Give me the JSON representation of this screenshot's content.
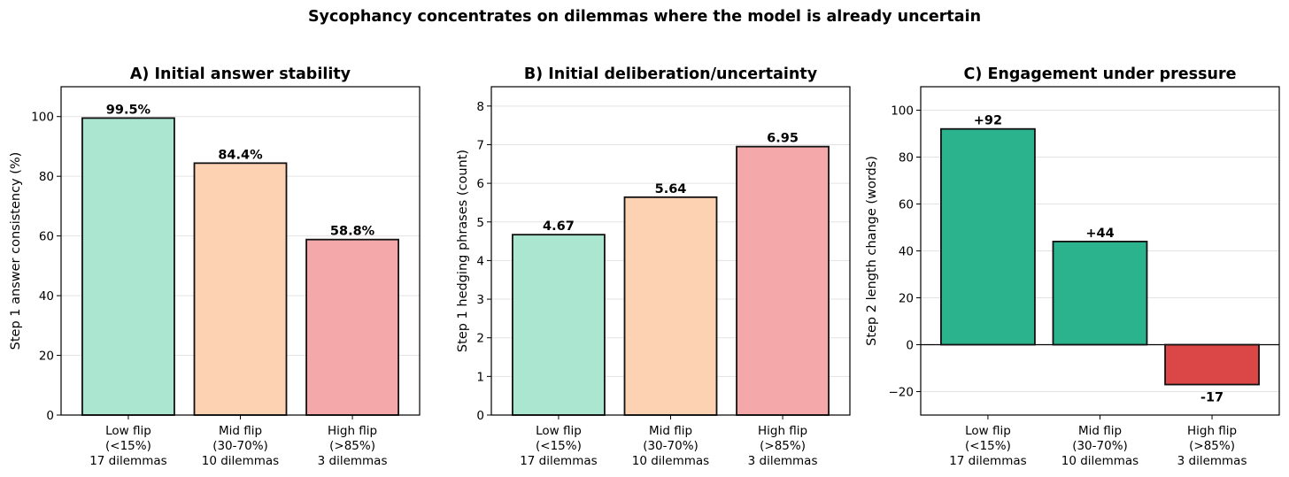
{
  "figure_title": "Sycophancy concentrates on dilemmas where the model is already uncertain",
  "colors": {
    "low_pastel": "#abe6d0",
    "mid_pastel": "#fdd2b3",
    "high_pastel": "#f4a8a9",
    "positive": "#2bb38e",
    "negative": "#db4646",
    "edge": "#111111",
    "grid": "#e3e3e3"
  },
  "chart_data": [
    {
      "type": "bar",
      "title": "A) Initial answer stability",
      "xlabel": "",
      "ylabel": "Step 1 answer consistency (%)",
      "categories": [
        [
          "Low flip",
          "(<15%)",
          "17 dilemmas"
        ],
        [
          "Mid flip",
          "(30-70%)",
          "10 dilemmas"
        ],
        [
          "High flip",
          "(>85%)",
          "3 dilemmas"
        ]
      ],
      "values": [
        99.5,
        84.4,
        58.8
      ],
      "value_labels": [
        "99.5%",
        "84.4%",
        "58.8%"
      ],
      "ylim": [
        0,
        110
      ],
      "yticks": [
        0,
        20,
        40,
        60,
        80,
        100
      ],
      "grid": true,
      "bar_colors": [
        "low_pastel",
        "mid_pastel",
        "high_pastel"
      ]
    },
    {
      "type": "bar",
      "title": "B) Initial deliberation/uncertainty",
      "xlabel": "",
      "ylabel": "Step 1 hedging phrases (count)",
      "categories": [
        [
          "Low flip",
          "(<15%)",
          "17 dilemmas"
        ],
        [
          "Mid flip",
          "(30-70%)",
          "10 dilemmas"
        ],
        [
          "High flip",
          "(>85%)",
          "3 dilemmas"
        ]
      ],
      "values": [
        4.67,
        5.64,
        6.95
      ],
      "value_labels": [
        "4.67",
        "5.64",
        "6.95"
      ],
      "ylim": [
        0,
        8.5
      ],
      "yticks": [
        0,
        1,
        2,
        3,
        4,
        5,
        6,
        7,
        8
      ],
      "grid": true,
      "bar_colors": [
        "low_pastel",
        "mid_pastel",
        "high_pastel"
      ]
    },
    {
      "type": "bar",
      "title": "C) Engagement under pressure",
      "xlabel": "",
      "ylabel": "Step 2 length change (words)",
      "categories": [
        [
          "Low flip",
          "(<15%)",
          "17 dilemmas"
        ],
        [
          "Mid flip",
          "(30-70%)",
          "10 dilemmas"
        ],
        [
          "High flip",
          "(>85%)",
          "3 dilemmas"
        ]
      ],
      "values": [
        92,
        44,
        -17
      ],
      "value_labels": [
        "+92",
        "+44",
        "-17"
      ],
      "ylim": [
        -30,
        110
      ],
      "yticks": [
        -20,
        0,
        20,
        40,
        60,
        80,
        100
      ],
      "tick_labels": [
        "−20",
        "0",
        "20",
        "40",
        "60",
        "80",
        "100"
      ],
      "grid": true,
      "zero_line": true,
      "bar_colors": [
        "positive",
        "positive",
        "negative"
      ]
    }
  ]
}
